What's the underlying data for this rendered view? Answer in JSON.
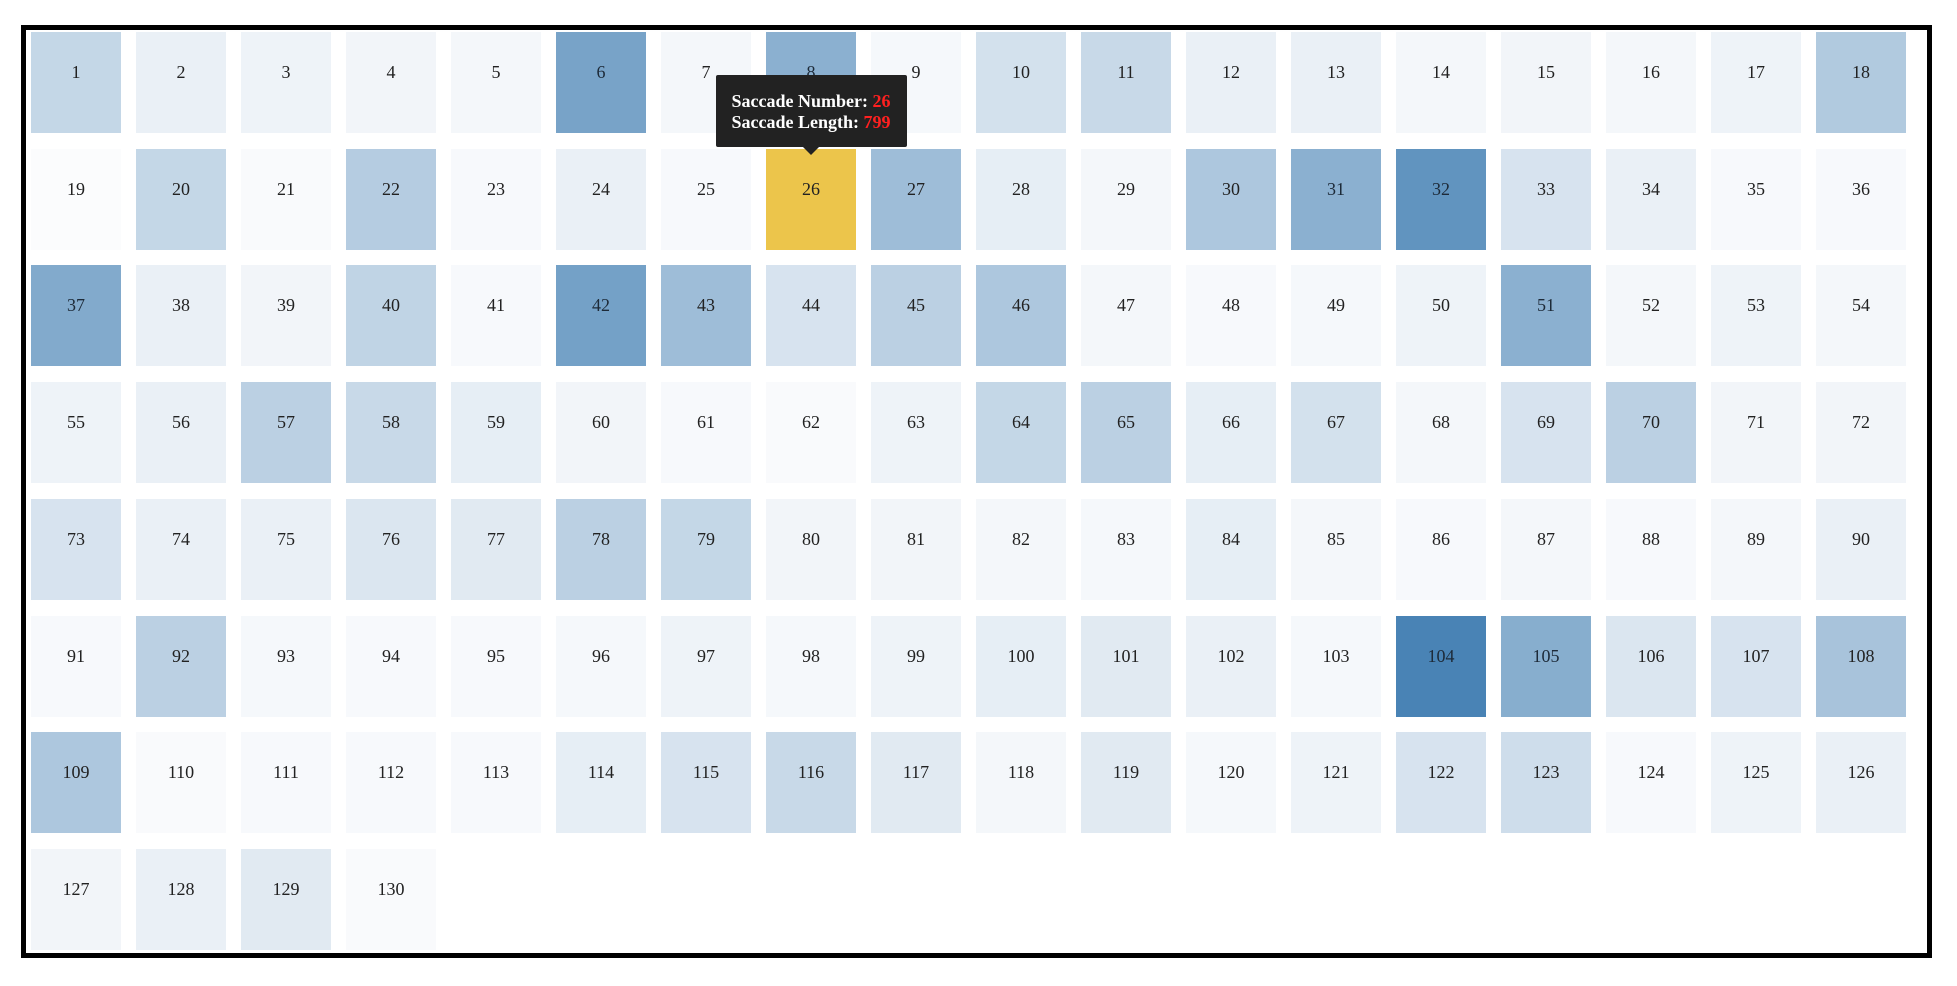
{
  "chart_data": {
    "type": "heatmap",
    "columns": 18,
    "highlight_color": "#ecc54b",
    "color_scale": [
      "#fdfdfe",
      "#3f7db1"
    ],
    "highlighted_cell": 26,
    "cells": [
      {
        "label": "1",
        "v": 0.3
      },
      {
        "label": "2",
        "v": 0.1
      },
      {
        "label": "3",
        "v": 0.08
      },
      {
        "label": "4",
        "v": 0.06
      },
      {
        "label": "5",
        "v": 0.05
      },
      {
        "label": "6",
        "v": 0.7
      },
      {
        "label": "7",
        "v": 0.05
      },
      {
        "label": "8",
        "v": 0.6
      },
      {
        "label": "9",
        "v": 0.04
      },
      {
        "label": "10",
        "v": 0.22
      },
      {
        "label": "11",
        "v": 0.28
      },
      {
        "label": "12",
        "v": 0.1
      },
      {
        "label": "13",
        "v": 0.1
      },
      {
        "label": "14",
        "v": 0.05
      },
      {
        "label": "15",
        "v": 0.06
      },
      {
        "label": "16",
        "v": 0.05
      },
      {
        "label": "17",
        "v": 0.08
      },
      {
        "label": "18",
        "v": 0.4
      },
      {
        "label": "19",
        "v": 0.01
      },
      {
        "label": "20",
        "v": 0.3
      },
      {
        "label": "21",
        "v": 0.02
      },
      {
        "label": "22",
        "v": 0.38
      },
      {
        "label": "23",
        "v": 0.03
      },
      {
        "label": "24",
        "v": 0.1
      },
      {
        "label": "25",
        "v": 0.03
      },
      {
        "label": "26",
        "v": 0.0
      },
      {
        "label": "27",
        "v": 0.5
      },
      {
        "label": "28",
        "v": 0.12
      },
      {
        "label": "29",
        "v": 0.05
      },
      {
        "label": "30",
        "v": 0.42
      },
      {
        "label": "31",
        "v": 0.6
      },
      {
        "label": "32",
        "v": 0.82
      },
      {
        "label": "33",
        "v": 0.2
      },
      {
        "label": "34",
        "v": 0.1
      },
      {
        "label": "35",
        "v": 0.03
      },
      {
        "label": "36",
        "v": 0.03
      },
      {
        "label": "37",
        "v": 0.65
      },
      {
        "label": "38",
        "v": 0.1
      },
      {
        "label": "39",
        "v": 0.06
      },
      {
        "label": "40",
        "v": 0.32
      },
      {
        "label": "41",
        "v": 0.03
      },
      {
        "label": "42",
        "v": 0.72
      },
      {
        "label": "43",
        "v": 0.5
      },
      {
        "label": "44",
        "v": 0.2
      },
      {
        "label": "45",
        "v": 0.35
      },
      {
        "label": "46",
        "v": 0.42
      },
      {
        "label": "47",
        "v": 0.05
      },
      {
        "label": "48",
        "v": 0.03
      },
      {
        "label": "49",
        "v": 0.04
      },
      {
        "label": "50",
        "v": 0.08
      },
      {
        "label": "51",
        "v": 0.6
      },
      {
        "label": "52",
        "v": 0.05
      },
      {
        "label": "53",
        "v": 0.08
      },
      {
        "label": "54",
        "v": 0.05
      },
      {
        "label": "55",
        "v": 0.08
      },
      {
        "label": "56",
        "v": 0.1
      },
      {
        "label": "57",
        "v": 0.35
      },
      {
        "label": "58",
        "v": 0.28
      },
      {
        "label": "59",
        "v": 0.12
      },
      {
        "label": "60",
        "v": 0.06
      },
      {
        "label": "61",
        "v": 0.03
      },
      {
        "label": "62",
        "v": 0.02
      },
      {
        "label": "63",
        "v": 0.08
      },
      {
        "label": "64",
        "v": 0.3
      },
      {
        "label": "65",
        "v": 0.35
      },
      {
        "label": "66",
        "v": 0.12
      },
      {
        "label": "67",
        "v": 0.22
      },
      {
        "label": "68",
        "v": 0.05
      },
      {
        "label": "69",
        "v": 0.2
      },
      {
        "label": "70",
        "v": 0.35
      },
      {
        "label": "71",
        "v": 0.06
      },
      {
        "label": "72",
        "v": 0.06
      },
      {
        "label": "73",
        "v": 0.2
      },
      {
        "label": "74",
        "v": 0.1
      },
      {
        "label": "75",
        "v": 0.1
      },
      {
        "label": "76",
        "v": 0.18
      },
      {
        "label": "77",
        "v": 0.15
      },
      {
        "label": "78",
        "v": 0.35
      },
      {
        "label": "79",
        "v": 0.3
      },
      {
        "label": "80",
        "v": 0.06
      },
      {
        "label": "81",
        "v": 0.06
      },
      {
        "label": "82",
        "v": 0.05
      },
      {
        "label": "83",
        "v": 0.04
      },
      {
        "label": "84",
        "v": 0.12
      },
      {
        "label": "85",
        "v": 0.05
      },
      {
        "label": "86",
        "v": 0.03
      },
      {
        "label": "87",
        "v": 0.05
      },
      {
        "label": "88",
        "v": 0.03
      },
      {
        "label": "89",
        "v": 0.05
      },
      {
        "label": "90",
        "v": 0.1
      },
      {
        "label": "91",
        "v": 0.03
      },
      {
        "label": "92",
        "v": 0.35
      },
      {
        "label": "93",
        "v": 0.04
      },
      {
        "label": "94",
        "v": 0.03
      },
      {
        "label": "95",
        "v": 0.03
      },
      {
        "label": "96",
        "v": 0.04
      },
      {
        "label": "97",
        "v": 0.08
      },
      {
        "label": "98",
        "v": 0.04
      },
      {
        "label": "99",
        "v": 0.08
      },
      {
        "label": "100",
        "v": 0.12
      },
      {
        "label": "101",
        "v": 0.15
      },
      {
        "label": "102",
        "v": 0.1
      },
      {
        "label": "103",
        "v": 0.04
      },
      {
        "label": "104",
        "v": 0.95
      },
      {
        "label": "105",
        "v": 0.62
      },
      {
        "label": "106",
        "v": 0.18
      },
      {
        "label": "107",
        "v": 0.2
      },
      {
        "label": "108",
        "v": 0.45
      },
      {
        "label": "109",
        "v": 0.42
      },
      {
        "label": "110",
        "v": 0.02
      },
      {
        "label": "111",
        "v": 0.03
      },
      {
        "label": "112",
        "v": 0.03
      },
      {
        "label": "113",
        "v": 0.03
      },
      {
        "label": "114",
        "v": 0.12
      },
      {
        "label": "115",
        "v": 0.2
      },
      {
        "label": "116",
        "v": 0.28
      },
      {
        "label": "117",
        "v": 0.15
      },
      {
        "label": "118",
        "v": 0.05
      },
      {
        "label": "119",
        "v": 0.15
      },
      {
        "label": "120",
        "v": 0.04
      },
      {
        "label": "121",
        "v": 0.08
      },
      {
        "label": "122",
        "v": 0.2
      },
      {
        "label": "123",
        "v": 0.25
      },
      {
        "label": "124",
        "v": 0.03
      },
      {
        "label": "125",
        "v": 0.08
      },
      {
        "label": "126",
        "v": 0.1
      },
      {
        "label": "127",
        "v": 0.06
      },
      {
        "label": "128",
        "v": 0.1
      },
      {
        "label": "129",
        "v": 0.15
      },
      {
        "label": "130",
        "v": 0.02
      }
    ]
  },
  "tooltip": {
    "number_label": "Saccade Number:",
    "number_value": "26",
    "length_label": "Saccade Length:",
    "length_value": "799",
    "value_color": "#ff2020"
  }
}
